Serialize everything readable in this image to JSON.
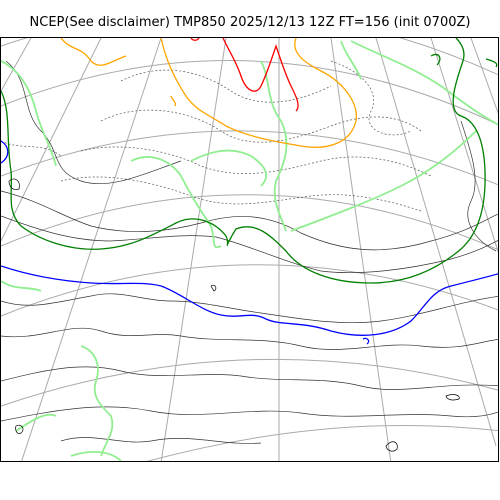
{
  "header": {
    "title": "NCEP(See disclaimer) TMP850 2025/12/13 12Z FT=156 (init 0700Z)"
  },
  "map": {
    "field": "TMP850",
    "valid_time": "2025/12/13 12Z",
    "forecast_hour": "FT=156",
    "init": "0700Z",
    "contour_colors": {
      "isotherm_thin": "#000000",
      "isotherm_dotted": "#555555",
      "cold_light_green": "#90ee90",
      "zero_line_dark_green": "#008000",
      "minus_blue": "#0000ff",
      "orange": "#ffa500",
      "red": "#ff0000",
      "graticule": "#aaaaaa"
    }
  }
}
